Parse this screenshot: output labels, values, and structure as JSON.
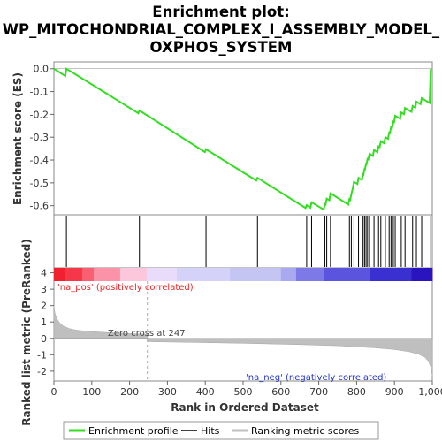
{
  "chart_data": {
    "type": "line",
    "title_lines": [
      "Enrichment plot:",
      "WP_MITOCHONDRIAL_COMPLEX_I_ASSEMBLY_MODEL_",
      "OXPHOS_SYSTEM"
    ],
    "xlabel": "Rank in Ordered Dataset",
    "es_ylabel": "Enrichment score (ES)",
    "metric_ylabel": "Ranked list metric (PreRanked)",
    "xlim": [
      0,
      1000
    ],
    "x_ticks": [
      0,
      100,
      200,
      300,
      400,
      500,
      600,
      700,
      800,
      900,
      1000
    ],
    "x_tick_labels": [
      "0",
      "100",
      "200",
      "300",
      "400",
      "500",
      "600",
      "700",
      "800",
      "900",
      "1,000"
    ],
    "es_ylim": [
      -0.64,
      0.03
    ],
    "es_ticks": [
      0.0,
      -0.1,
      -0.2,
      -0.3,
      -0.4,
      -0.5,
      -0.6
    ],
    "es_tick_labels": [
      "0.0",
      "-0.1",
      "-0.2",
      "-0.3",
      "-0.4",
      "-0.5",
      "-0.6"
    ],
    "metric_ylim": [
      -2.6,
      4.3
    ],
    "metric_ticks": [
      4,
      3,
      2,
      1,
      0,
      -1,
      -2
    ],
    "metric_tick_labels": [
      "4",
      "3",
      "2",
      "1",
      "0",
      "-1",
      "-2"
    ],
    "hits": [
      33,
      226,
      402,
      538,
      668,
      681,
      716,
      721,
      731,
      781,
      786,
      793,
      805,
      817,
      821,
      825,
      829,
      834,
      846,
      858,
      864,
      876,
      886,
      891,
      897,
      902,
      918,
      928,
      948,
      958,
      972,
      996
    ],
    "es_x": [
      0,
      30,
      33,
      223,
      226,
      399,
      402,
      535,
      538,
      665,
      668,
      678,
      681,
      713,
      716,
      718,
      721,
      728,
      731,
      778,
      781,
      783,
      786,
      790,
      793,
      802,
      805,
      814,
      817,
      818,
      821,
      822,
      825,
      826,
      829,
      831,
      834,
      843,
      846,
      855,
      858,
      861,
      864,
      873,
      876,
      883,
      886,
      888,
      891,
      894,
      897,
      899,
      902,
      915,
      918,
      925,
      928,
      945,
      948,
      955,
      958,
      969,
      972,
      993,
      996
    ],
    "es_y": [
      0.0,
      -0.032,
      0.0,
      -0.195,
      -0.183,
      -0.365,
      -0.353,
      -0.49,
      -0.478,
      -0.61,
      -0.598,
      -0.609,
      -0.585,
      -0.617,
      -0.593,
      -0.595,
      -0.569,
      -0.576,
      -0.546,
      -0.595,
      -0.571,
      -0.574,
      -0.55,
      -0.523,
      -0.496,
      -0.505,
      -0.478,
      -0.487,
      -0.463,
      -0.464,
      -0.44,
      -0.441,
      -0.417,
      -0.418,
      -0.395,
      -0.397,
      -0.373,
      -0.382,
      -0.356,
      -0.366,
      -0.34,
      -0.343,
      -0.318,
      -0.327,
      -0.3,
      -0.307,
      -0.28,
      -0.282,
      -0.255,
      -0.258,
      -0.232,
      -0.234,
      -0.206,
      -0.219,
      -0.192,
      -0.199,
      -0.172,
      -0.189,
      -0.163,
      -0.17,
      -0.144,
      -0.155,
      -0.129,
      -0.15,
      0.0
    ],
    "zero_cross_rank": 247,
    "zero_cross_label": "Zero cross at 247",
    "pos_label": "'na_pos' (positively correlated)",
    "neg_label": "'na_neg' (negatively correlated)",
    "metric_profile_x": [
      0,
      3,
      8,
      15,
      25,
      40,
      60,
      90,
      130,
      180,
      247,
      248,
      350,
      500,
      650,
      750,
      850,
      900,
      940,
      965,
      980,
      990,
      996,
      1000
    ],
    "metric_profile_y": [
      2.0,
      1.5,
      1.2,
      0.95,
      0.75,
      0.6,
      0.5,
      0.43,
      0.37,
      0.31,
      0.25,
      -0.2,
      -0.24,
      -0.3,
      -0.38,
      -0.45,
      -0.58,
      -0.68,
      -0.82,
      -0.98,
      -1.15,
      -1.4,
      -1.75,
      -2.3
    ],
    "legend": [
      "Enrichment profile",
      "Hits",
      "Ranking metric scores"
    ],
    "colors": {
      "es_line": "#33dd22",
      "hits": "#000000",
      "metric_fill": "#bfbfbf",
      "pos_text": "#ee2222",
      "neg_text": "#2233cc",
      "zero_cross_text": "#444444"
    },
    "heat_colors": [
      "#f0202e",
      "#f4384a",
      "#f85f71",
      "#fb93a8",
      "#fcc6db",
      "#e8dcfa",
      "#d4d2f8",
      "#c5c5f4",
      "#a9a9ef",
      "#7d7ae8",
      "#5a54df",
      "#3a2fd0",
      "#2a14c0"
    ],
    "heat_segment_ranks": [
      0,
      28,
      75,
      105,
      175,
      245,
      325,
      465,
      600,
      640,
      715,
      835,
      945,
      1000
    ]
  }
}
